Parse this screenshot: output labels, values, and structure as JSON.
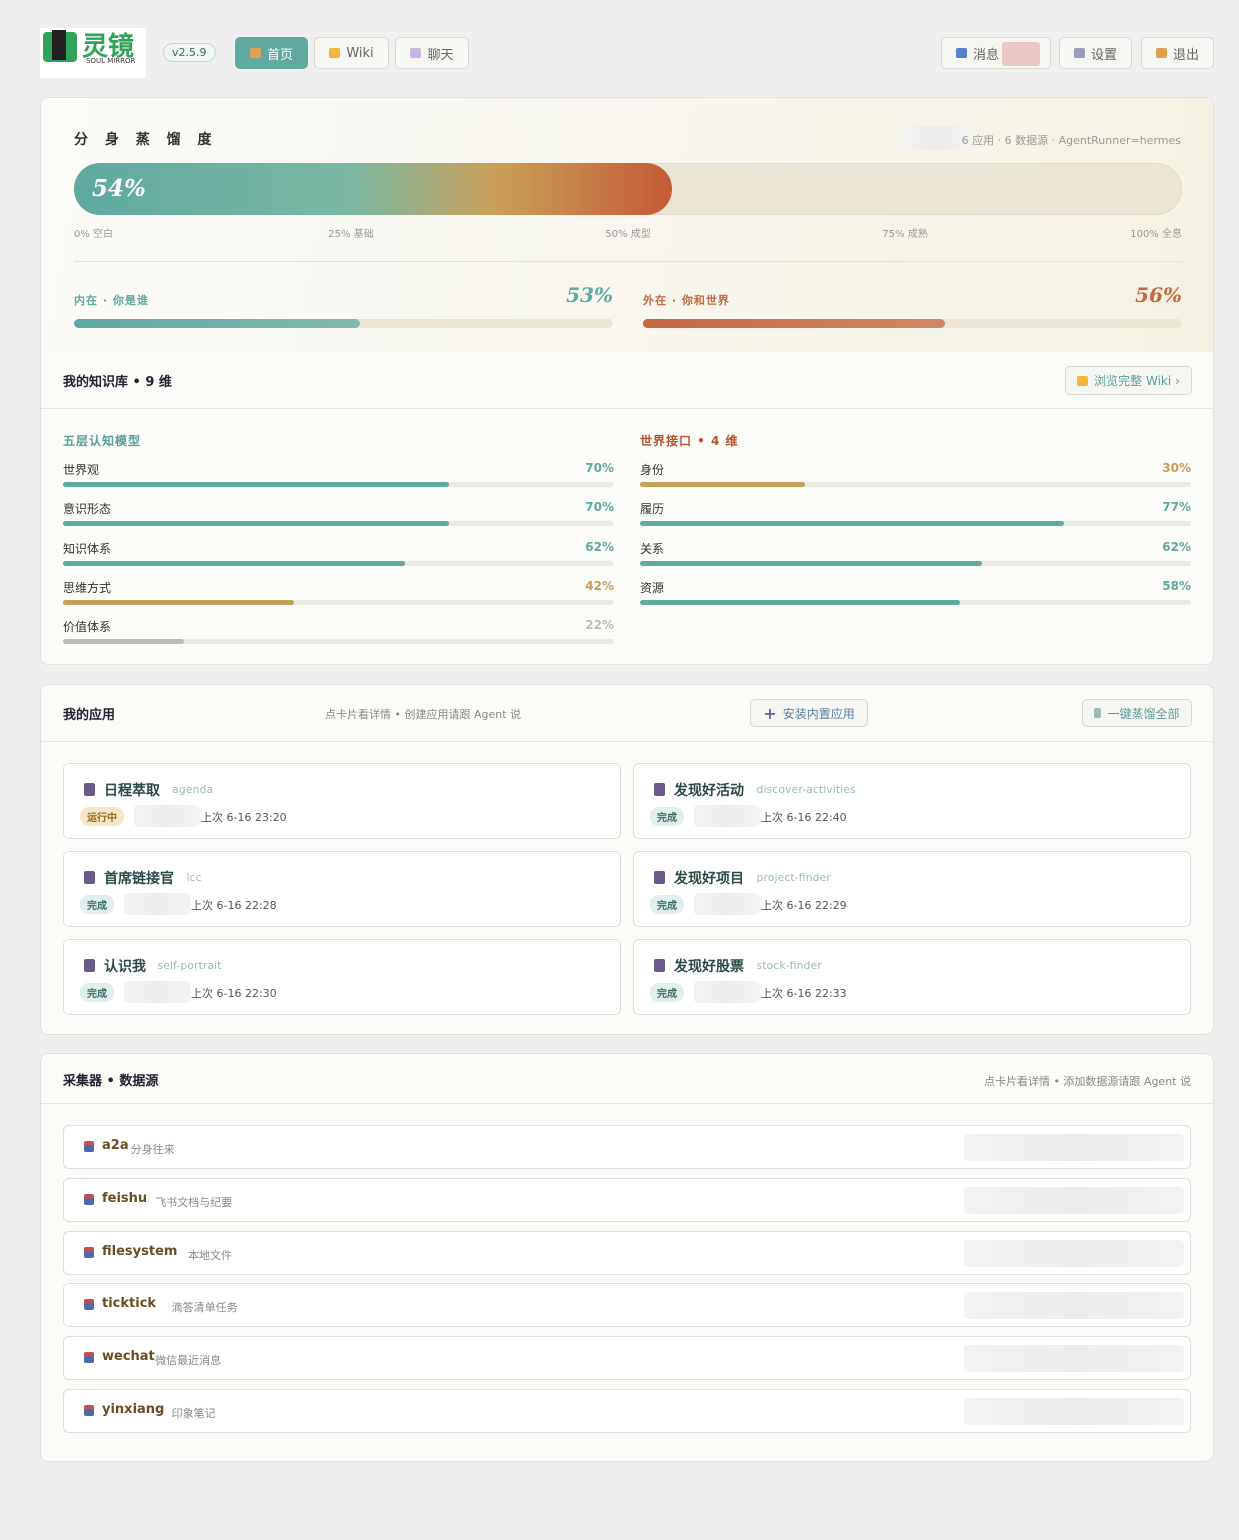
{
  "header": {
    "logo_title": "灵镜",
    "logo_subtitle": "SOUL MIRROR",
    "version": "v2.5.9",
    "nav": [
      "首页",
      "Wiki",
      "聊天"
    ],
    "actions": [
      "消息",
      "设置",
      "退出"
    ]
  },
  "distill": {
    "title": "分 身 蒸 馏 度",
    "meta": "6 应用 · 6 数据源 · AgentRunner=hermes",
    "progress": {
      "value": 54,
      "label": "54%"
    },
    "scale": [
      {
        "value": 0,
        "label": "0% 空白"
      },
      {
        "value": 25,
        "label": "25% 基础"
      },
      {
        "value": 50,
        "label": "50% 成型"
      },
      {
        "value": 75,
        "label": "75% 成熟"
      },
      {
        "value": 100,
        "label": "100% 全息"
      }
    ],
    "inner": {
      "label": "内在 · 你是谁",
      "progress": {
        "value": 53,
        "label": "53%"
      },
      "color": "#5fa9a0"
    },
    "outer": {
      "label": "外在 · 你和世界",
      "progress": {
        "value": 56,
        "label": "56%"
      },
      "color": "#c4673f"
    }
  },
  "knowledge": {
    "title": "我的知识库 • 9 维",
    "button": "浏览完整 Wiki ›",
    "groups": [
      {
        "title": "五层认知模型",
        "color": "#5a9e98",
        "items": [
          {
            "name": "世界观",
            "value": 70,
            "label": "70%",
            "color": "#5fa9a0"
          },
          {
            "name": "意识形态",
            "value": 70,
            "label": "70%",
            "color": "#5fa9a0"
          },
          {
            "name": "知识体系",
            "value": 62,
            "label": "62%",
            "color": "#5fa9a0"
          },
          {
            "name": "思维方式",
            "value": 42,
            "label": "42%",
            "color": "#c4a05a"
          },
          {
            "name": "价值体系",
            "value": 22,
            "label": "22%",
            "color": "#bcbcbc"
          }
        ]
      },
      {
        "title": "世界接口 • 4 维",
        "color": "#b5532f",
        "items": [
          {
            "name": "身份",
            "value": 30,
            "label": "30%",
            "color": "#c4a05a"
          },
          {
            "name": "履历",
            "value": 77,
            "label": "77%",
            "color": "#5fa9a0"
          },
          {
            "name": "关系",
            "value": 62,
            "label": "62%",
            "color": "#5fa9a0"
          },
          {
            "name": "资源",
            "value": 58,
            "label": "58%",
            "color": "#5fa9a0"
          }
        ]
      }
    ]
  },
  "apps": {
    "title": "我的应用",
    "hint": "点卡片看详情 • 创建应用请跟 Agent 说",
    "buttons": [
      "安装内置应用",
      "一键蒸馏全部"
    ],
    "items": [
      {
        "name": "日程萃取",
        "id": "agenda",
        "status": "运行中",
        "time": "上次 6-16 23:20"
      },
      {
        "name": "发现好活动",
        "id": "discover-activities",
        "status": "完成",
        "time": "上次 6-16 22:40"
      },
      {
        "name": "首席链接官",
        "id": "lcc",
        "status": "完成",
        "time": "上次 6-16 22:28"
      },
      {
        "name": "发现好项目",
        "id": "project-finder",
        "status": "完成",
        "time": "上次 6-16 22:29"
      },
      {
        "name": "认识我",
        "id": "self-portrait",
        "status": "完成",
        "time": "上次 6-16 22:30"
      },
      {
        "name": "发现好股票",
        "id": "stock-finder",
        "status": "完成",
        "time": "上次 6-16 22:33"
      }
    ]
  },
  "collectors": {
    "title": "采集器 • 数据源",
    "hint": "点卡片看详情 • 添加数据源请跟 Agent 说",
    "items": [
      {
        "name": "a2a",
        "desc": "分身往来"
      },
      {
        "name": "feishu",
        "desc": "飞书文档与纪要"
      },
      {
        "name": "filesystem",
        "desc": "本地文件"
      },
      {
        "name": "ticktick",
        "desc": "滴答清单任务"
      },
      {
        "name": "wechat",
        "desc": "微信最近消息"
      },
      {
        "name": "yinxiang",
        "desc": "印象笔记"
      }
    ]
  }
}
